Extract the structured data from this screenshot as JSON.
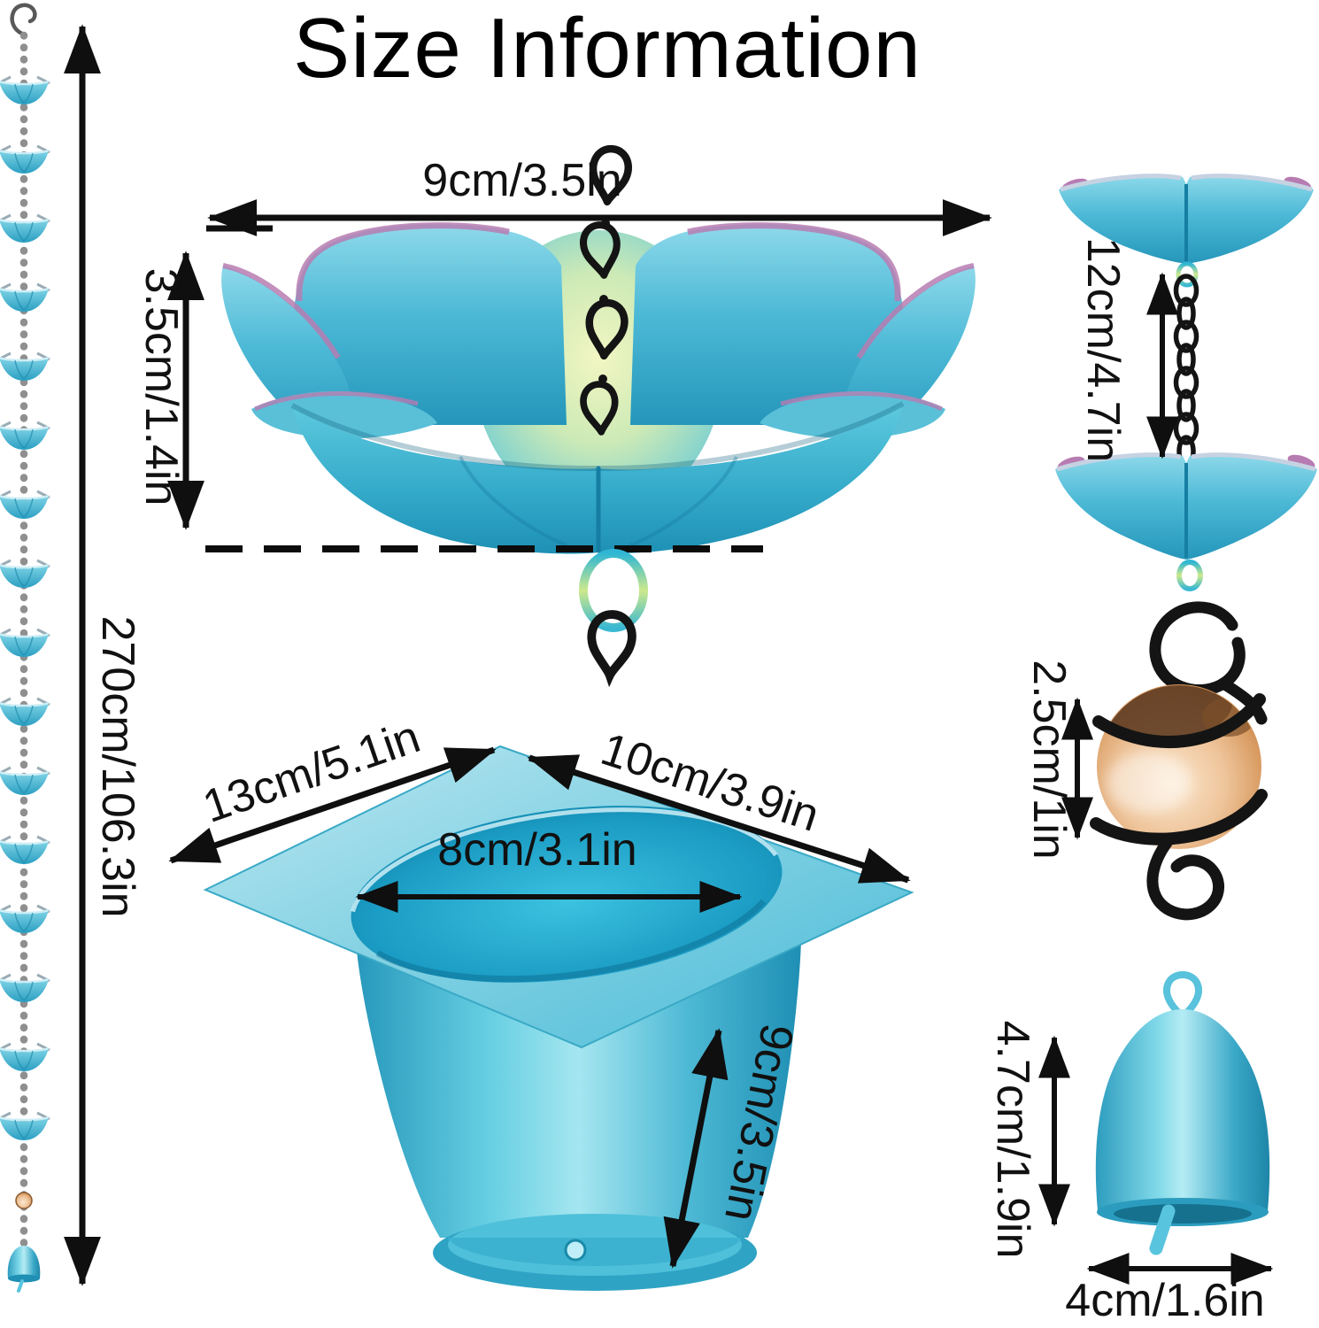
{
  "title": "Size Information",
  "dimensions": {
    "total_chain": "270cm/106.3in",
    "flower_width": "9cm/3.5in",
    "flower_height": "3.5cm/1.4in",
    "funnel_plate_left": "13cm/5.1in",
    "funnel_plate_right": "10cm/3.9in",
    "funnel_hole": "8cm/3.1in",
    "funnel_cup_height": "9cm/3.5in",
    "cup_to_cup_spacing": "12cm/4.7in",
    "ball_diameter": "2.5cm/1in",
    "bell_height": "4.7cm/1.9in",
    "bell_width": "4cm/1.6in"
  },
  "colors": {
    "teal": "#45b8d8",
    "teal_dark": "#1b93b8",
    "teal_light": "#9fdeed",
    "petal_purple": "#b77cb2",
    "glow_green": "#e8f2ae",
    "chain_black": "#141414",
    "chain_silver": "#909090",
    "ball_orange": "#dc9a5e",
    "text_black": "#111111"
  },
  "left_chain": {
    "cup_count": 16
  },
  "right_chain": {
    "link_count": 8
  }
}
